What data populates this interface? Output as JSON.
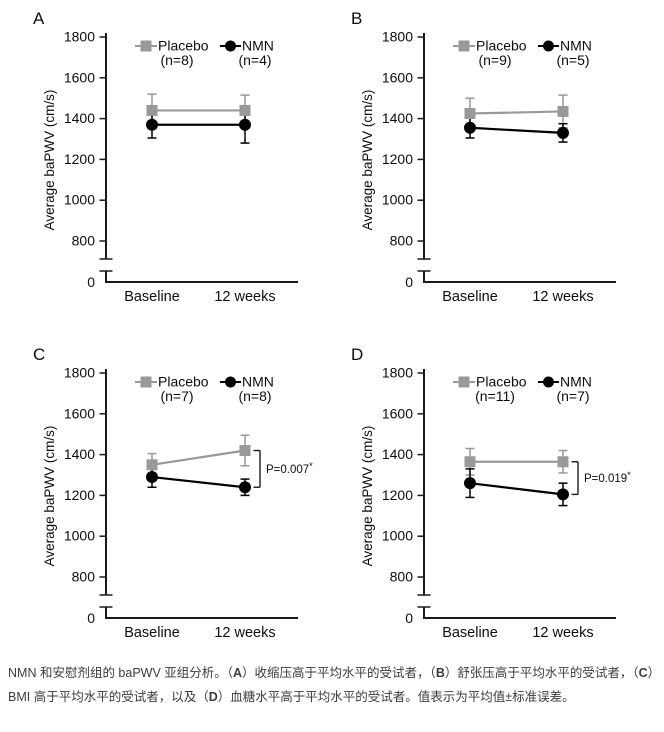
{
  "figure": {
    "caption_segments": [
      {
        "text": "NMN 和安慰剂组的 baPWV 亚组分析。（",
        "bold": false
      },
      {
        "text": "A",
        "bold": true
      },
      {
        "text": "）收缩压高于平均水平的受试者，（",
        "bold": false
      },
      {
        "text": "B",
        "bold": true
      },
      {
        "text": "）舒张压高于平均水平的受试者，（",
        "bold": false
      },
      {
        "text": "C",
        "bold": true
      },
      {
        "text": "）BMI 高于平均水平的受试者，以及（",
        "bold": false
      },
      {
        "text": "D",
        "bold": true
      },
      {
        "text": "）血糖水平高于平均水平的受试者。值表示为平均值±标准误差。",
        "bold": false
      }
    ],
    "colors": {
      "placebo": "#999999",
      "nmn": "#000000",
      "axis": "#1a1a1a",
      "caption_text": "#3c3c3c"
    }
  },
  "chart_data": [
    {
      "type": "line",
      "panel_label": "A",
      "title": "",
      "ylabel": "Average baPWV (cm/s)",
      "categories": [
        "Baseline",
        "12 weeks"
      ],
      "yticks": [
        1800,
        1600,
        1400,
        1200,
        1000,
        800
      ],
      "origin_label": "0",
      "axis_break": true,
      "ylim_display": [
        800,
        1800
      ],
      "legend_position": "top",
      "grid": false,
      "series": [
        {
          "name": "Placebo",
          "n_label": "(n=8)",
          "marker": "square",
          "color": "#999999",
          "values": [
            1440,
            1440
          ],
          "errors": [
            80,
            75
          ]
        },
        {
          "name": "NMN",
          "n_label": "(n=4)",
          "marker": "circle",
          "color": "#000000",
          "values": [
            1370,
            1370
          ],
          "errors": [
            65,
            90
          ]
        }
      ],
      "p_value": null
    },
    {
      "type": "line",
      "panel_label": "B",
      "title": "",
      "ylabel": "Average baPWV (cm/s)",
      "categories": [
        "Baseline",
        "12 weeks"
      ],
      "yticks": [
        1800,
        1600,
        1400,
        1200,
        1000,
        800
      ],
      "origin_label": "0",
      "axis_break": true,
      "ylim_display": [
        800,
        1800
      ],
      "legend_position": "top",
      "grid": false,
      "series": [
        {
          "name": "Placebo",
          "n_label": "(n=9)",
          "marker": "square",
          "color": "#999999",
          "values": [
            1425,
            1435
          ],
          "errors": [
            75,
            80
          ]
        },
        {
          "name": "NMN",
          "n_label": "(n=5)",
          "marker": "circle",
          "color": "#000000",
          "values": [
            1355,
            1330
          ],
          "errors": [
            50,
            45
          ]
        }
      ],
      "p_value": null
    },
    {
      "type": "line",
      "panel_label": "C",
      "title": "",
      "ylabel": "Average baPWV (cm/s)",
      "categories": [
        "Baseline",
        "12 weeks"
      ],
      "yticks": [
        1800,
        1600,
        1400,
        1200,
        1000,
        800
      ],
      "origin_label": "0",
      "axis_break": true,
      "ylim_display": [
        800,
        1800
      ],
      "legend_position": "top",
      "grid": false,
      "series": [
        {
          "name": "Placebo",
          "n_label": "(n=7)",
          "marker": "square",
          "color": "#999999",
          "values": [
            1350,
            1420
          ],
          "errors": [
            55,
            75
          ]
        },
        {
          "name": "NMN",
          "n_label": "(n=8)",
          "marker": "circle",
          "color": "#000000",
          "values": [
            1290,
            1240
          ],
          "errors": [
            50,
            40
          ]
        }
      ],
      "p_value": {
        "label": "P=0.007",
        "star": "*"
      }
    },
    {
      "type": "line",
      "panel_label": "D",
      "title": "",
      "ylabel": "Average baPWV (cm/s)",
      "categories": [
        "Baseline",
        "12 weeks"
      ],
      "yticks": [
        1800,
        1600,
        1400,
        1200,
        1000,
        800
      ],
      "origin_label": "0",
      "axis_break": true,
      "ylim_display": [
        800,
        1800
      ],
      "legend_position": "top",
      "grid": false,
      "series": [
        {
          "name": "Placebo",
          "n_label": "(n=11)",
          "marker": "square",
          "color": "#999999",
          "values": [
            1365,
            1365
          ],
          "errors": [
            65,
            55
          ]
        },
        {
          "name": "NMN",
          "n_label": "(n=7)",
          "marker": "circle",
          "color": "#000000",
          "values": [
            1260,
            1205
          ],
          "errors": [
            70,
            55
          ]
        }
      ],
      "p_value": {
        "label": "P=0.019",
        "star": "*"
      }
    }
  ]
}
